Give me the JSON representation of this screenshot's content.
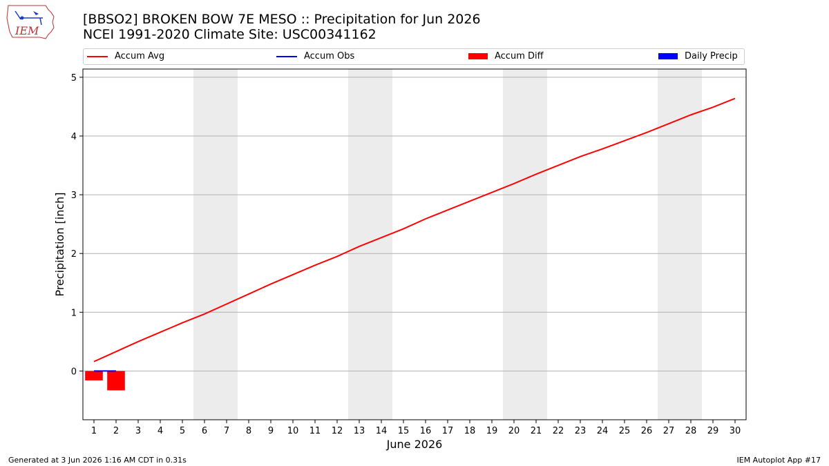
{
  "header": {
    "title_line1": "[BBSO2] BROKEN BOW 7E MESO :: Precipitation for Jun 2026",
    "title_line2": "NCEI 1991-2020 Climate Site: USC00341162",
    "logo_text": "IEM"
  },
  "legend": [
    {
      "label": "Accum Avg",
      "color": "#ff0000",
      "kind": "line"
    },
    {
      "label": "Accum Obs",
      "color": "#0000ff",
      "kind": "line"
    },
    {
      "label": "Accum Diff",
      "color": "#ff0000",
      "kind": "patch"
    },
    {
      "label": "Daily Precip",
      "color": "#0000ff",
      "kind": "patch"
    }
  ],
  "footer": {
    "left": "Generated at 3 Jun 2026 1:16 AM CDT in 0.31s",
    "right": "IEM Autoplot App #17"
  },
  "chart_data": {
    "type": "line",
    "xlabel": "June 2026",
    "ylabel": "Precipitation [inch]",
    "x": [
      1,
      2,
      3,
      4,
      5,
      6,
      7,
      8,
      9,
      10,
      11,
      12,
      13,
      14,
      15,
      16,
      17,
      18,
      19,
      20,
      21,
      22,
      23,
      24,
      25,
      26,
      27,
      28,
      29,
      30
    ],
    "xlim": [
      0.5,
      30.5
    ],
    "ylim": [
      -0.83,
      5.14
    ],
    "yticks": [
      0,
      1,
      2,
      3,
      4,
      5
    ],
    "grid": "horizontal",
    "weekend_shading": [
      [
        5.5,
        7.5
      ],
      [
        12.5,
        14.5
      ],
      [
        19.5,
        21.5
      ],
      [
        26.5,
        28.5
      ]
    ],
    "accum_avg": [
      0.16,
      0.33,
      0.5,
      0.66,
      0.82,
      0.97,
      1.14,
      1.31,
      1.48,
      1.64,
      1.8,
      1.95,
      2.12,
      2.27,
      2.42,
      2.59,
      2.74,
      2.89,
      3.04,
      3.19,
      3.35,
      3.5,
      3.65,
      3.78,
      3.92,
      4.06,
      4.21,
      4.36,
      4.49,
      4.64
    ],
    "accum_obs": [
      0.0,
      0.0
    ],
    "accum_diff": [
      -0.16,
      -0.33
    ],
    "daily_precip": [
      0.0,
      0.0
    ],
    "colors": {
      "accum_avg": "#ff0000",
      "accum_obs": "#0000ff",
      "accum_diff": "#ff0000",
      "daily_precip": "#0000ff",
      "shade": "#ececec",
      "grid": "#b0b0b0"
    }
  }
}
